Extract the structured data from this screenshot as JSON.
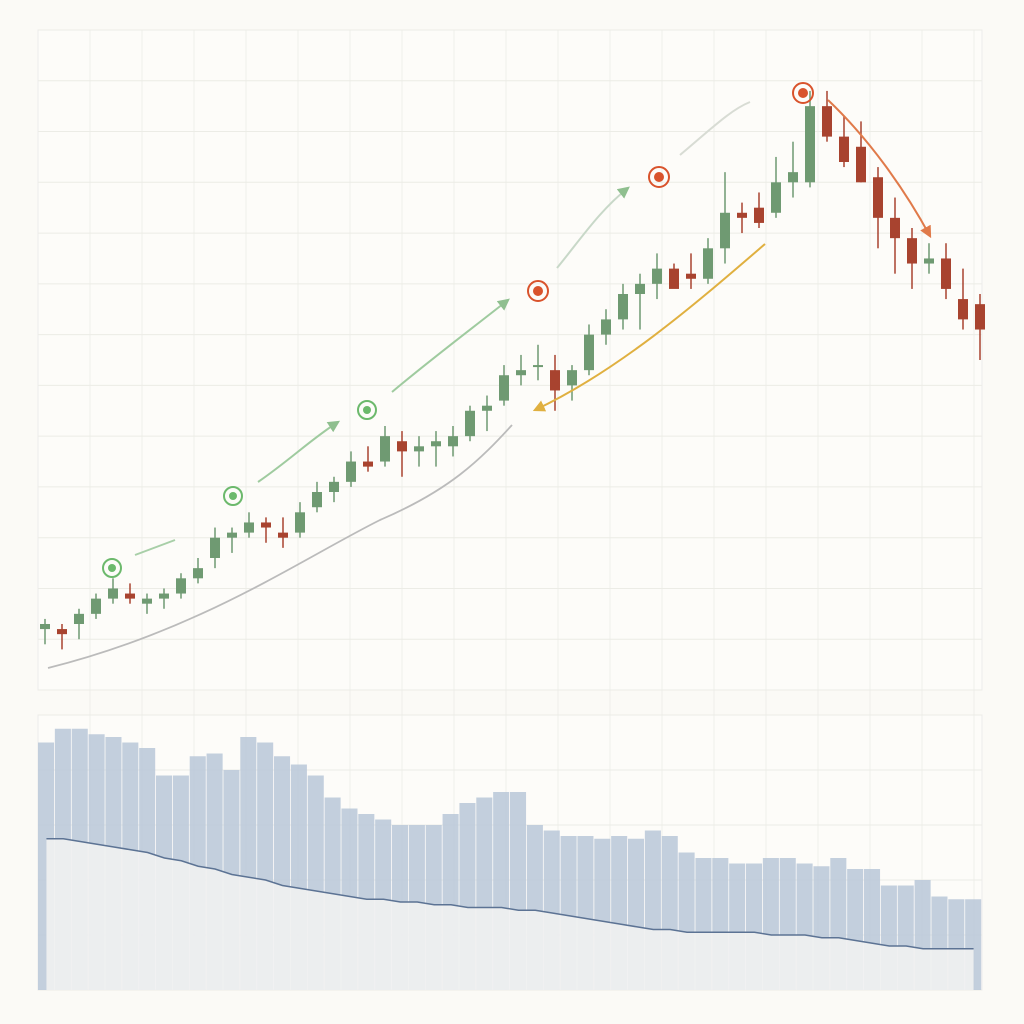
{
  "chart_data": [
    {
      "type": "candlestick",
      "open": [
        12,
        12,
        13,
        15,
        18,
        19,
        17,
        18,
        19,
        22,
        26,
        30,
        31,
        33,
        31,
        31,
        36,
        39,
        41,
        45,
        45,
        49,
        47,
        48,
        48,
        50,
        55,
        57,
        62,
        64,
        63,
        60,
        63,
        70,
        73,
        78,
        80,
        83,
        82,
        81,
        87,
        94,
        95,
        94,
        100,
        100,
        115,
        109,
        107,
        101,
        93,
        89,
        84,
        85,
        77,
        76
      ],
      "high": [
        14,
        13,
        16,
        19,
        22,
        21,
        19,
        20,
        23,
        26,
        32,
        32,
        35,
        34,
        34,
        37,
        41,
        42,
        47,
        48,
        52,
        51,
        50,
        51,
        52,
        56,
        58,
        64,
        66,
        68,
        66,
        64,
        72,
        75,
        80,
        82,
        86,
        84,
        86,
        89,
        102,
        96,
        98,
        105,
        108,
        118,
        118,
        113,
        112,
        103,
        97,
        91,
        88,
        88,
        83,
        78
      ],
      "low": [
        9,
        8,
        10,
        14,
        17,
        17,
        15,
        16,
        18,
        21,
        24,
        27,
        30,
        29,
        28,
        30,
        35,
        37,
        40,
        43,
        44,
        42,
        44,
        44,
        46,
        49,
        51,
        56,
        60,
        61,
        55,
        57,
        62,
        68,
        71,
        71,
        77,
        80,
        79,
        80,
        84,
        90,
        91,
        93,
        97,
        99,
        108,
        103,
        100,
        87,
        82,
        79,
        82,
        77,
        71,
        65
      ],
      "close": [
        13,
        11,
        15,
        18,
        20,
        18,
        18,
        19,
        22,
        24,
        30,
        31,
        33,
        32,
        30,
        35,
        39,
        41,
        45,
        44,
        50,
        47,
        48,
        49,
        50,
        55,
        56,
        62,
        63,
        64,
        59,
        63,
        70,
        73,
        78,
        80,
        83,
        79,
        81,
        87,
        94,
        93,
        92,
        100,
        102,
        115,
        109,
        104,
        100,
        93,
        89,
        84,
        85,
        79,
        73,
        71
      ],
      "up_color": "#6f9a72",
      "down_color": "#a8432f",
      "ylim": [
        0,
        130
      ],
      "yticks": [
        0,
        10,
        20,
        30,
        40,
        50,
        60,
        70,
        80,
        90,
        100,
        110,
        120,
        130
      ],
      "grid": true
    },
    {
      "type": "area",
      "values": [
        90,
        95,
        95,
        93,
        92,
        90,
        88,
        78,
        78,
        85,
        86,
        80,
        92,
        90,
        85,
        82,
        78,
        70,
        66,
        64,
        62,
        60,
        60,
        60,
        64,
        68,
        70,
        72,
        72,
        60,
        58,
        56,
        56,
        55,
        56,
        55,
        58,
        56,
        50,
        48,
        48,
        46,
        46,
        48,
        48,
        46,
        45,
        48,
        44,
        44,
        38,
        38,
        40,
        34,
        33,
        33
      ],
      "average": [
        55,
        55,
        54,
        53,
        52,
        51,
        50,
        48,
        47,
        45,
        44,
        42,
        41,
        40,
        38,
        37,
        36,
        35,
        34,
        33,
        33,
        32,
        32,
        31,
        31,
        30,
        30,
        30,
        29,
        29,
        28,
        27,
        26,
        25,
        24,
        23,
        22,
        22,
        21,
        21,
        21,
        21,
        21,
        20,
        20,
        20,
        19,
        19,
        18,
        17,
        16,
        16,
        15,
        15,
        15,
        15
      ],
      "color": "#b9c7d8",
      "average_color": "#5c7394",
      "ylim": [
        0,
        100
      ],
      "yticks": [
        0,
        20,
        40,
        60,
        80,
        100
      ],
      "grid": true
    }
  ]
}
